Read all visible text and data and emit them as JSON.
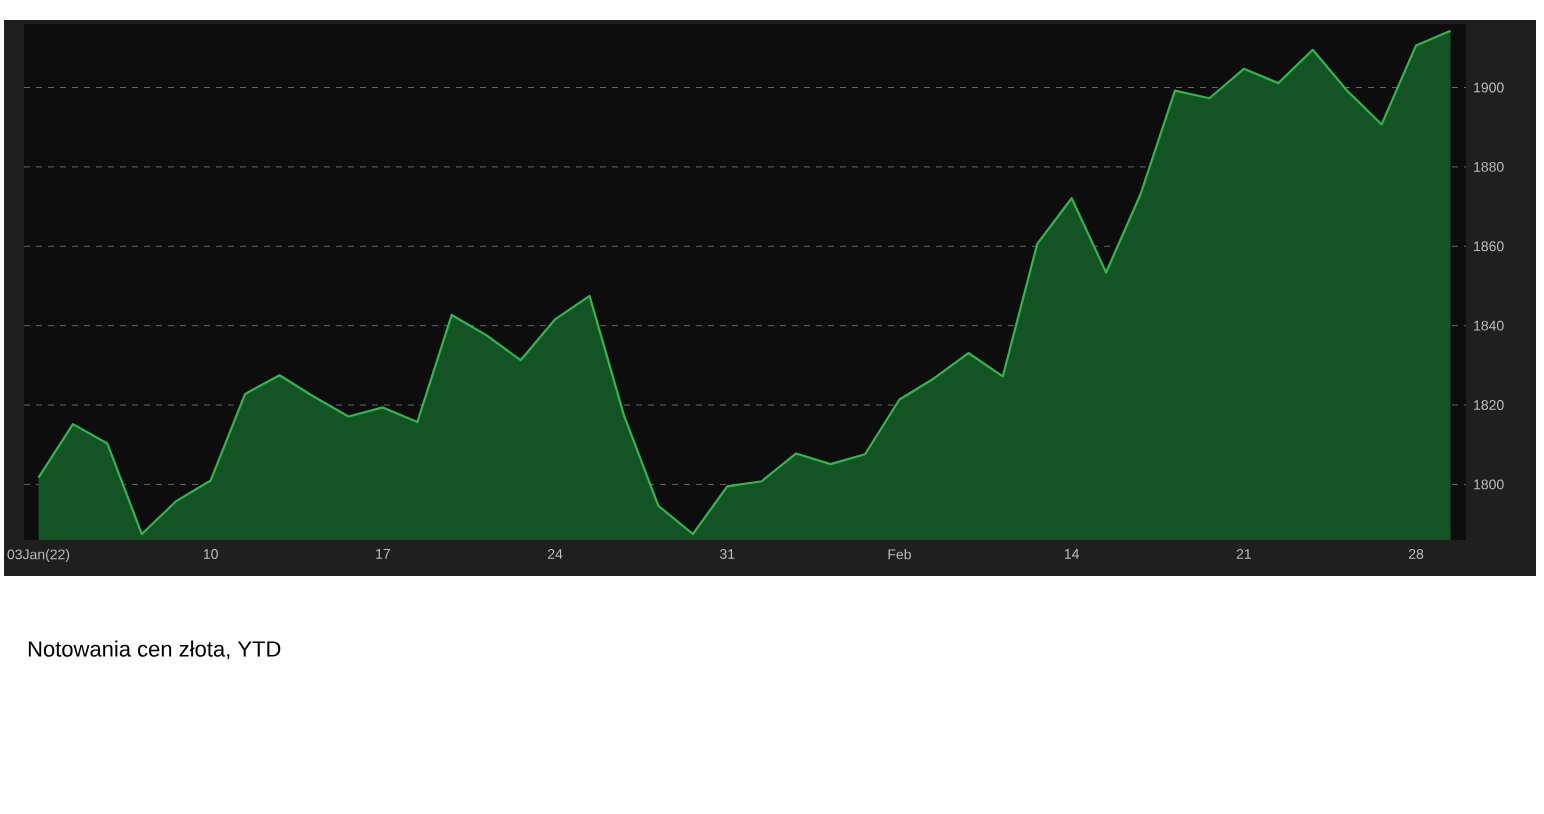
{
  "chart_data": {
    "type": "area",
    "categories": [
      "03Jan(22)",
      null,
      null,
      null,
      null,
      "10",
      null,
      null,
      null,
      null,
      "17",
      null,
      null,
      null,
      null,
      "24",
      null,
      null,
      null,
      null,
      "31",
      null,
      null,
      null,
      null,
      "Feb",
      null,
      null,
      null,
      null,
      "14",
      null,
      null,
      null,
      null,
      "21",
      null,
      null,
      null,
      null,
      "28",
      null
    ],
    "series": [
      {
        "color": "#2db84d",
        "values": [
          1801.7,
          1815.2,
          1810.3,
          1787.5,
          1795.8,
          1801.0,
          1822.8,
          1827.5,
          1822.1,
          1817.1,
          1819.4,
          1815.7,
          1842.7,
          1837.6,
          1831.3,
          1841.6,
          1847.5,
          1817.4,
          1794.6,
          1787.5,
          1799.5,
          1800.8,
          1807.8,
          1805.1,
          1807.6,
          1821.4,
          1826.7,
          1833.1,
          1827.2,
          1860.6,
          1872.1,
          1853.4,
          1873.1,
          1899.2,
          1897.3,
          1904.7,
          1901.1,
          1909.5,
          1899.2,
          1890.7,
          1910.6,
          1914.3
        ]
      }
    ],
    "ylim": [
      1786,
      1916
    ],
    "yticks": [
      1800,
      1820,
      1840,
      1860,
      1880,
      1900
    ],
    "grid": "y",
    "annotations": [
      "Notowania cen złota, YTD"
    ]
  }
}
